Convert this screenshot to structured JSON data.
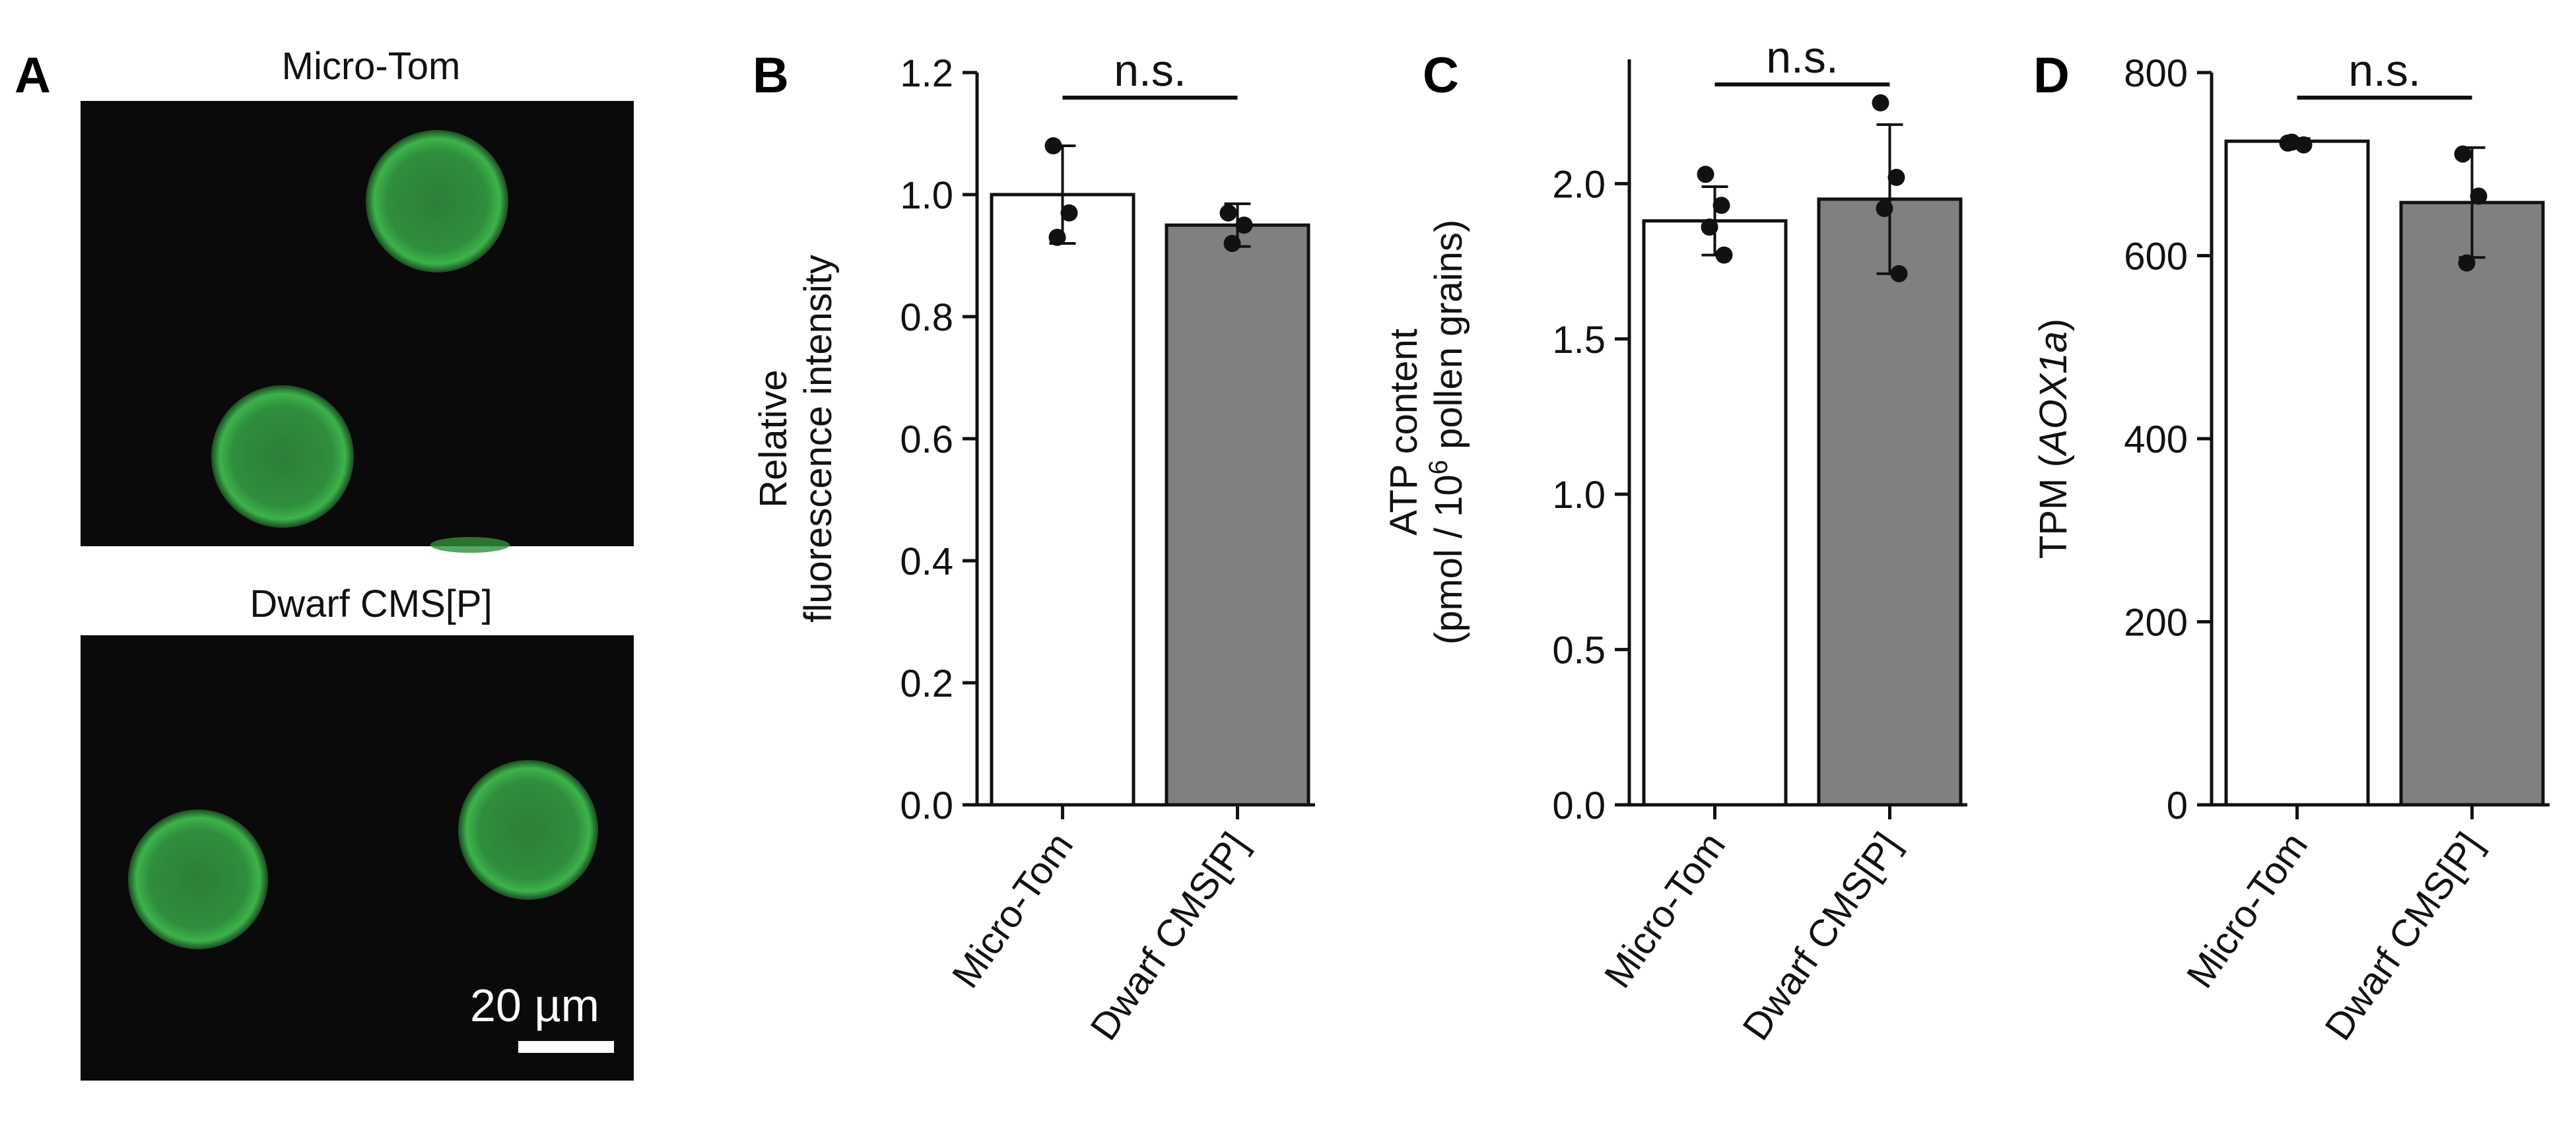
{
  "panel_a": {
    "label": "A",
    "top_title": "Micro-Tom",
    "bottom_title": "Dwarf CMS[P]",
    "scale_bar_label": "20 µm",
    "bg_color": "#0a0a0a",
    "pollen_color": "#2f8e3c",
    "pollen_edge_color": "#5ee36a"
  },
  "chart_data": [
    {
      "type": "bar",
      "panel_label": "B",
      "categories": [
        "Micro-Tom",
        "Dwarf CMS[P]"
      ],
      "values": [
        1.0,
        0.95
      ],
      "errors": [
        0.08,
        0.035
      ],
      "points": [
        [
          1.08,
          0.97,
          0.93
        ],
        [
          0.97,
          0.95,
          0.92
        ]
      ],
      "ylim": [
        0,
        1.2
      ],
      "yticks": [
        "0.0",
        "0.2",
        "0.4",
        "0.6",
        "0.8",
        "1.0",
        "1.2"
      ],
      "ytick_values": [
        0,
        0.2,
        0.4,
        0.6,
        0.8,
        1.0,
        1.2
      ],
      "ylabel": [
        "Relative",
        "fluorescence intensity"
      ],
      "significance": "n.s.",
      "bar_colors": [
        "#ffffff",
        "#808080"
      ]
    },
    {
      "type": "bar",
      "panel_label": "C",
      "categories": [
        "Micro-Tom",
        "Dwarf CMS[P]"
      ],
      "values": [
        1.88,
        1.95
      ],
      "errors": [
        0.11,
        0.24
      ],
      "points": [
        [
          2.03,
          1.93,
          1.86,
          1.77
        ],
        [
          2.26,
          2.02,
          1.92,
          1.71
        ]
      ],
      "ylim": [
        0,
        2.4
      ],
      "yticks": [
        "0.0",
        "0.5",
        "1.0",
        "1.5",
        "2.0"
      ],
      "ytick_values": [
        0,
        0.5,
        1.0,
        1.5,
        2.0
      ],
      "ylabel": [
        "ATP content",
        "(pmol / 10",
        "6",
        " pollen grains)"
      ],
      "significance": "n.s.",
      "bar_colors": [
        "#ffffff",
        "#808080"
      ]
    },
    {
      "type": "bar",
      "panel_label": "D",
      "categories": [
        "Micro-Tom",
        "Dwarf CMS[P]"
      ],
      "values": [
        725,
        658
      ],
      "errors": [
        3,
        60
      ],
      "points": [
        [
          723,
          721,
          724
        ],
        [
          711,
          665,
          592
        ]
      ],
      "ylim": [
        0,
        800
      ],
      "yticks": [
        "0",
        "200",
        "400",
        "600",
        "800"
      ],
      "ytick_values": [
        0,
        200,
        400,
        600,
        800
      ],
      "ylabel": [
        "TPM (",
        "AOX1a",
        ")"
      ],
      "significance": "n.s.",
      "bar_colors": [
        "#ffffff",
        "#808080"
      ]
    }
  ]
}
